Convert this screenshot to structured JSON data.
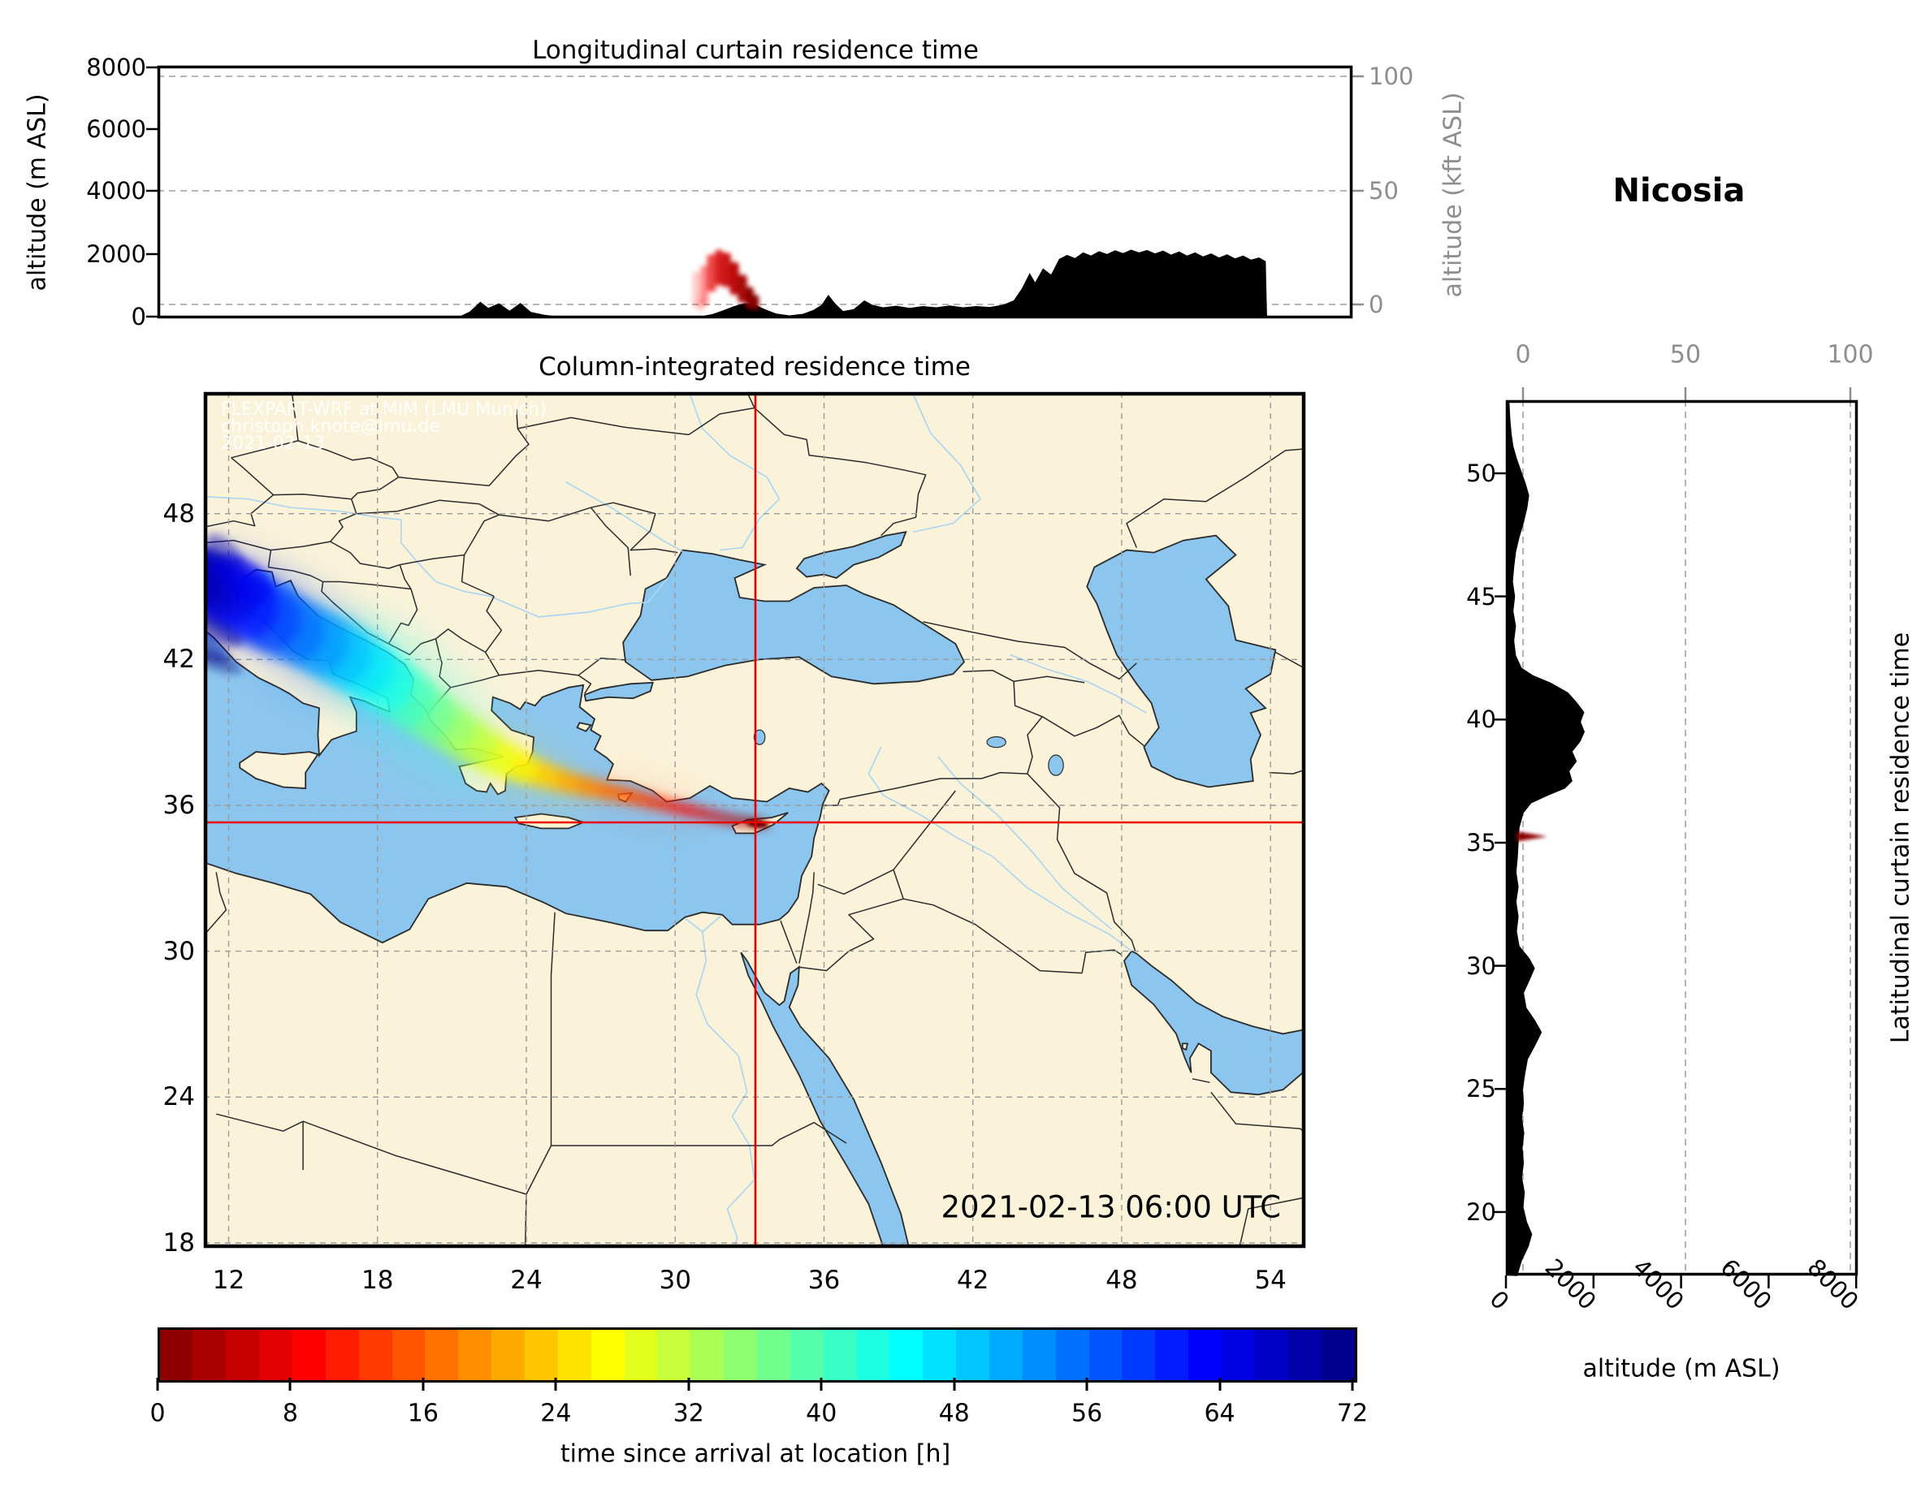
{
  "station": {
    "name": "Nicosia"
  },
  "timestamp": "2021-02-13 06:00 UTC",
  "watermark": {
    "line1": "FLEXPART-WRF at MIM (LMU Munich)",
    "line2": "christoph.knote@lmu.de",
    "line3": "2021-02-13"
  },
  "panels": {
    "longitudinal": {
      "title": "Longitudinal curtain residence time",
      "ylabel_left": "altitude (m ASL)",
      "ylabel_right": "altitude (kft ASL)",
      "yticks_left": [
        "8000",
        "6000",
        "4000",
        "2000",
        "0"
      ],
      "yticks_right": [
        "100",
        "50",
        "0"
      ]
    },
    "map": {
      "title": "Column-integrated residence time",
      "lon_ticks": [
        "12",
        "18",
        "24",
        "30",
        "36",
        "42",
        "48",
        "54"
      ],
      "lat_ticks": [
        "48",
        "42",
        "36",
        "30",
        "24",
        "18"
      ]
    },
    "latitudinal": {
      "label_right": "Latitudinal curtain residence time",
      "xlabel": "altitude (m ASL)",
      "alt_ticks": [
        "0",
        "2000",
        "4000",
        "6000",
        "8000"
      ],
      "kft_ticks": [
        "0",
        "50",
        "100"
      ],
      "lat_ticks": [
        "50",
        "45",
        "40",
        "35",
        "30",
        "25",
        "20"
      ]
    }
  },
  "colorbar": {
    "label": "time since arrival at location [h]",
    "ticks": [
      "0",
      "8",
      "16",
      "24",
      "32",
      "40",
      "48",
      "56",
      "64",
      "72"
    ]
  },
  "colors": {
    "land": "#faf3d9",
    "ocean": "#8cc6ee",
    "river": "#aed6f1",
    "coast": "#2b2b2b",
    "grid": "#9a9a9a",
    "crosshair": "#e80000",
    "terrain": "#000000",
    "secondary_axis": "#8e8e8e"
  },
  "chart_data": {
    "type": "heatmap",
    "description": "FLEXPART-WRF backward-trajectory residence time for receptor Nicosia: column-integrated map plus longitudinal and latitudinal altitude curtains",
    "station": "Nicosia",
    "arrival_time_utc": "2021-02-13 06:00 UTC",
    "map_extent": {
      "lon": [
        11.0,
        55.4
      ],
      "lat": [
        17.8,
        53.0
      ]
    },
    "receptor": {
      "lon": 33.2,
      "lat": 35.3
    },
    "colorbar": {
      "label": "time since arrival at location [h]",
      "min": 0,
      "max": 72,
      "tick_step": 8,
      "colormap": "jet_reversed",
      "n_segments": 36
    },
    "altitude_axis_m": [
      0,
      8200
    ],
    "kft_axis_ticks": [
      0,
      50,
      100
    ],
    "plume_blobs_lon_lat_h_rx_ry_rot_op": [
      [
        33.28,
        35.27,
        0.4,
        0.5,
        0.15,
        8,
        1.0
      ],
      [
        32.85,
        35.32,
        1.5,
        0.55,
        0.16,
        8,
        0.95
      ],
      [
        32.35,
        35.4,
        3,
        0.6,
        0.17,
        9,
        0.95
      ],
      [
        31.75,
        35.52,
        5,
        0.65,
        0.18,
        10,
        0.9
      ],
      [
        31.05,
        35.68,
        7,
        0.7,
        0.2,
        11,
        0.9
      ],
      [
        30.3,
        35.85,
        9,
        0.75,
        0.22,
        12,
        0.88
      ],
      [
        29.5,
        36.05,
        11,
        0.8,
        0.24,
        13,
        0.86
      ],
      [
        28.7,
        36.25,
        13,
        0.85,
        0.27,
        14,
        0.84
      ],
      [
        27.9,
        36.45,
        15,
        0.9,
        0.31,
        15,
        0.82
      ],
      [
        27.0,
        36.65,
        17,
        0.95,
        0.36,
        16,
        0.8
      ],
      [
        26.1,
        36.85,
        19,
        1.0,
        0.42,
        18,
        0.78
      ],
      [
        25.2,
        37.1,
        21.5,
        1.05,
        0.5,
        20,
        0.75
      ],
      [
        24.3,
        37.4,
        24,
        1.1,
        0.6,
        23,
        0.72
      ],
      [
        23.4,
        37.75,
        26.5,
        1.15,
        0.72,
        27,
        0.7
      ],
      [
        22.5,
        38.2,
        29,
        1.2,
        0.85,
        31,
        0.68
      ],
      [
        21.6,
        38.75,
        32,
        1.25,
        1.0,
        35,
        0.66
      ],
      [
        20.7,
        39.35,
        35,
        1.3,
        1.1,
        38,
        0.64
      ],
      [
        19.85,
        39.95,
        38,
        1.35,
        1.18,
        41,
        0.62
      ],
      [
        19.0,
        40.6,
        41,
        1.4,
        1.25,
        43,
        0.6
      ],
      [
        18.1,
        41.25,
        44,
        1.45,
        1.3,
        44,
        0.6
      ],
      [
        17.2,
        41.85,
        47,
        1.5,
        1.35,
        44,
        0.6
      ],
      [
        16.25,
        42.4,
        50,
        1.55,
        1.4,
        43,
        0.6
      ],
      [
        15.3,
        42.9,
        53,
        1.6,
        1.42,
        42,
        0.6
      ],
      [
        14.3,
        43.4,
        56,
        1.65,
        1.44,
        40,
        0.6
      ],
      [
        13.3,
        43.9,
        59,
        1.7,
        1.45,
        38,
        0.62
      ],
      [
        12.4,
        44.4,
        62,
        1.7,
        1.45,
        36,
        0.64
      ],
      [
        11.6,
        44.85,
        65,
        1.65,
        1.4,
        34,
        0.66
      ],
      [
        11.0,
        45.2,
        67,
        1.55,
        1.35,
        33,
        0.66
      ],
      [
        10.6,
        45.5,
        69,
        1.4,
        1.2,
        32,
        0.6
      ]
    ],
    "plume_streaks_lon_lat_h_rx_ry_rot_op": [
      [
        11.3,
        43.3,
        70,
        1.4,
        0.45,
        28,
        0.5
      ],
      [
        10.9,
        42.5,
        71,
        1.3,
        0.4,
        24,
        0.45
      ],
      [
        11.5,
        41.9,
        72,
        1.1,
        0.35,
        20,
        0.38
      ],
      [
        11.1,
        46.0,
        68,
        1.2,
        0.5,
        40,
        0.5
      ],
      [
        11.9,
        46.4,
        69,
        1.0,
        0.45,
        45,
        0.42
      ],
      [
        12.6,
        45.3,
        64,
        1.3,
        0.8,
        36,
        0.5
      ]
    ],
    "plume_haze_lon_lat_h_rx_ry_rot_op": [
      [
        19.5,
        40.3,
        43,
        4.5,
        2.3,
        44,
        0.16
      ],
      [
        15.0,
        43.0,
        57,
        3.6,
        2.1,
        40,
        0.18
      ],
      [
        23.8,
        37.6,
        25,
        3.2,
        1.3,
        26,
        0.13
      ],
      [
        28.8,
        36.2,
        12,
        2.6,
        0.8,
        14,
        0.1
      ],
      [
        12.3,
        44.6,
        63,
        2.6,
        1.9,
        35,
        0.18
      ],
      [
        17.5,
        41.5,
        46,
        3.0,
        1.8,
        44,
        0.15
      ]
    ],
    "longitudinal_curtain": {
      "plume_bars_lon0_lon1_m0_m1_h_op": [
        [
          31.05,
          31.35,
          300,
          1450,
          10,
          0.22
        ],
        [
          31.2,
          31.5,
          150,
          550,
          11,
          0.18
        ],
        [
          31.35,
          31.65,
          350,
          1650,
          9,
          0.45
        ],
        [
          31.6,
          31.95,
          800,
          2000,
          7,
          0.7
        ],
        [
          31.9,
          32.2,
          1000,
          2150,
          6,
          0.85
        ],
        [
          32.15,
          32.5,
          950,
          2050,
          5,
          0.9
        ],
        [
          32.45,
          32.8,
          700,
          1750,
          4,
          0.95
        ],
        [
          32.75,
          33.1,
          450,
          1350,
          2.5,
          0.95
        ],
        [
          33.05,
          33.35,
          250,
          950,
          1,
          1.0
        ],
        [
          33.3,
          33.55,
          200,
          700,
          0.3,
          1.0
        ]
      ],
      "terrain_profile_lon_m": [
        [
          11,
          0
        ],
        [
          22.3,
          0
        ],
        [
          22.7,
          160
        ],
        [
          23.1,
          480
        ],
        [
          23.4,
          280
        ],
        [
          23.8,
          430
        ],
        [
          24.2,
          190
        ],
        [
          24.6,
          440
        ],
        [
          25.0,
          150
        ],
        [
          25.5,
          60
        ],
        [
          26.1,
          0
        ],
        [
          31.3,
          0
        ],
        [
          31.8,
          80
        ],
        [
          32.2,
          200
        ],
        [
          32.6,
          330
        ],
        [
          33.0,
          430
        ],
        [
          33.4,
          380
        ],
        [
          33.8,
          230
        ],
        [
          34.2,
          100
        ],
        [
          34.7,
          40
        ],
        [
          35.2,
          90
        ],
        [
          35.6,
          220
        ],
        [
          35.9,
          380
        ],
        [
          36.15,
          700
        ],
        [
          36.4,
          430
        ],
        [
          36.7,
          180
        ],
        [
          37.1,
          240
        ],
        [
          37.5,
          520
        ],
        [
          37.8,
          380
        ],
        [
          38.2,
          300
        ],
        [
          38.7,
          350
        ],
        [
          39.2,
          280
        ],
        [
          39.7,
          340
        ],
        [
          40.2,
          300
        ],
        [
          40.7,
          360
        ],
        [
          41.2,
          300
        ],
        [
          41.7,
          340
        ],
        [
          42.2,
          310
        ],
        [
          42.7,
          380
        ],
        [
          43.1,
          520
        ],
        [
          43.4,
          900
        ],
        [
          43.7,
          1400
        ],
        [
          43.9,
          1100
        ],
        [
          44.2,
          1550
        ],
        [
          44.5,
          1350
        ],
        [
          44.8,
          1850
        ],
        [
          45.1,
          1980
        ],
        [
          45.4,
          1880
        ],
        [
          45.7,
          2060
        ],
        [
          46.0,
          1960
        ],
        [
          46.3,
          2100
        ],
        [
          46.6,
          2010
        ],
        [
          46.9,
          2130
        ],
        [
          47.2,
          2040
        ],
        [
          47.5,
          2150
        ],
        [
          47.8,
          2060
        ],
        [
          48.1,
          2140
        ],
        [
          48.4,
          2030
        ],
        [
          48.7,
          2120
        ],
        [
          49.0,
          1990
        ],
        [
          49.3,
          2090
        ],
        [
          49.6,
          1960
        ],
        [
          49.9,
          2060
        ],
        [
          50.2,
          1930
        ],
        [
          50.5,
          2030
        ],
        [
          50.8,
          1900
        ],
        [
          51.1,
          2000
        ],
        [
          51.4,
          1870
        ],
        [
          51.7,
          1960
        ],
        [
          52.0,
          1830
        ],
        [
          52.3,
          1900
        ],
        [
          52.55,
          1780
        ],
        [
          52.6,
          0
        ],
        [
          55.4,
          0
        ]
      ]
    },
    "latitudinal_curtain": {
      "plume_wedge_lat_m": {
        "lat": [
          35.05,
          35.45
        ],
        "alt_m": [
          250,
          950
        ],
        "hours": [
          0,
          2
        ]
      },
      "terrain_profile_lat_m": [
        [
          17.4,
          260
        ],
        [
          18.0,
          360
        ],
        [
          18.6,
          520
        ],
        [
          19.1,
          600
        ],
        [
          19.6,
          480
        ],
        [
          20.2,
          400
        ],
        [
          20.8,
          430
        ],
        [
          21.4,
          370
        ],
        [
          22.0,
          410
        ],
        [
          22.6,
          380
        ],
        [
          23.2,
          420
        ],
        [
          23.8,
          370
        ],
        [
          24.4,
          410
        ],
        [
          25.0,
          390
        ],
        [
          25.6,
          440
        ],
        [
          26.2,
          500
        ],
        [
          26.8,
          680
        ],
        [
          27.3,
          820
        ],
        [
          27.8,
          660
        ],
        [
          28.3,
          470
        ],
        [
          28.9,
          410
        ],
        [
          29.4,
          540
        ],
        [
          29.9,
          660
        ],
        [
          30.3,
          540
        ],
        [
          30.8,
          310
        ],
        [
          31.4,
          250
        ],
        [
          32.0,
          290
        ],
        [
          32.6,
          240
        ],
        [
          33.2,
          290
        ],
        [
          33.8,
          240
        ],
        [
          34.4,
          270
        ],
        [
          35.0,
          290
        ],
        [
          35.6,
          310
        ],
        [
          36.2,
          400
        ],
        [
          36.6,
          580
        ],
        [
          36.9,
          950
        ],
        [
          37.2,
          1350
        ],
        [
          37.5,
          1520
        ],
        [
          37.9,
          1450
        ],
        [
          38.3,
          1620
        ],
        [
          38.7,
          1520
        ],
        [
          39.1,
          1700
        ],
        [
          39.5,
          1800
        ],
        [
          39.9,
          1710
        ],
        [
          40.3,
          1790
        ],
        [
          40.7,
          1620
        ],
        [
          41.1,
          1420
        ],
        [
          41.5,
          1020
        ],
        [
          41.8,
          620
        ],
        [
          42.1,
          360
        ],
        [
          42.6,
          230
        ],
        [
          43.2,
          190
        ],
        [
          43.8,
          230
        ],
        [
          44.4,
          170
        ],
        [
          45.0,
          210
        ],
        [
          45.6,
          160
        ],
        [
          46.2,
          190
        ],
        [
          46.8,
          230
        ],
        [
          47.4,
          310
        ],
        [
          48.0,
          410
        ],
        [
          48.6,
          490
        ],
        [
          49.1,
          530
        ],
        [
          49.6,
          450
        ],
        [
          50.1,
          350
        ],
        [
          50.6,
          250
        ],
        [
          51.1,
          170
        ],
        [
          51.6,
          130
        ],
        [
          52.2,
          100
        ],
        [
          52.9,
          80
        ]
      ]
    }
  }
}
